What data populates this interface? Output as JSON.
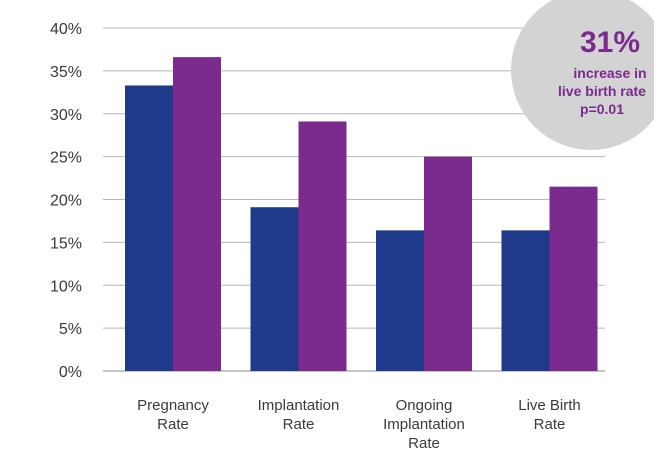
{
  "chart_data": {
    "type": "bar",
    "categories": [
      [
        "Pregnancy",
        "Rate"
      ],
      [
        "Implantation",
        "Rate"
      ],
      [
        "Ongoing",
        "Implantation",
        "Rate"
      ],
      [
        "Live Birth",
        "Rate"
      ]
    ],
    "series": [
      {
        "color": "#1f3a8a",
        "values": [
          33.3,
          19.1,
          16.4,
          16.4
        ]
      },
      {
        "color": "#7b2a8e",
        "values": [
          36.6,
          29.1,
          25.0,
          21.5
        ]
      }
    ],
    "ylim": [
      0,
      40
    ],
    "yticks": [
      0,
      5,
      10,
      15,
      20,
      25,
      30,
      35,
      40
    ],
    "ytick_labels": [
      "0%",
      "5%",
      "10%",
      "15%",
      "20%",
      "25%",
      "30%",
      "35%",
      "40%"
    ],
    "grid": true,
    "legend": "none"
  },
  "callout": {
    "headline": "31%",
    "lines": [
      "increase in",
      "live birth rate",
      "p=0.01"
    ],
    "bg_color": "#d3d3d3",
    "text_color": "#7b2a8e"
  }
}
